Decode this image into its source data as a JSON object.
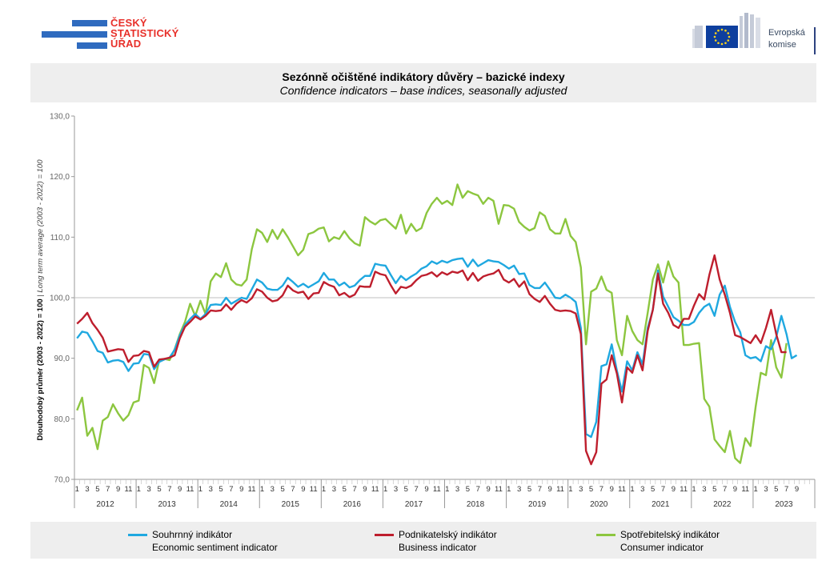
{
  "header": {
    "logo_left_lines": [
      "ČESKÝ",
      "STATISTICKÝ",
      "ÚŘAD"
    ],
    "logo_right_lines": [
      "Evropská",
      "komise"
    ]
  },
  "chart_data": {
    "type": "line",
    "title": "Sezónně očištěné indikátory důvěry – bazické indexy",
    "subtitle": "Confidence indicators – base indices, seasonally adjusted",
    "ylabel": "Dlouhodobý průměr (2003 - 2022) = 100",
    "ylabel_italic": " | Long term average (2003 - 2022) = 100",
    "ylim": [
      70,
      130
    ],
    "yticks": [
      "70,0",
      "80,0",
      "90,0",
      "100,0",
      "110,0",
      "120,0",
      "130,0"
    ],
    "month_tick_labels": [
      "1",
      "3",
      "5",
      "7",
      "9",
      "11"
    ],
    "year_labels": [
      "2012",
      "2013",
      "2014",
      "2015",
      "2016",
      "2017",
      "2018",
      "2019",
      "2020",
      "2021",
      "2022",
      "2023"
    ],
    "x_start": "2012-01",
    "x_end": "2023-07",
    "grid": "horizontal at 100 only",
    "legend_position": "bottom",
    "series": [
      {
        "name": "Souhrnný indikátor",
        "name_en": "Economic sentiment indicator",
        "color": "#1fa8e0",
        "values": [
          93.3,
          94.4,
          94.2,
          92.8,
          91.2,
          90.9,
          89.3,
          89.6,
          89.7,
          89.4,
          87.9,
          89.1,
          89.2,
          90.7,
          90.6,
          88.2,
          89.4,
          89.8,
          90.1,
          91.4,
          93.8,
          95.5,
          96.5,
          97.3,
          96.5,
          97.3,
          98.8,
          98.9,
          98.8,
          100.0,
          99.0,
          99.5,
          100.0,
          99.8,
          101.4,
          103.0,
          102.5,
          101.5,
          101.3,
          101.3,
          102.0,
          103.3,
          102.6,
          101.8,
          102.3,
          101.7,
          102.2,
          102.7,
          104.1,
          103.0,
          103.0,
          102.0,
          102.5,
          101.7,
          102.0,
          102.9,
          103.6,
          103.6,
          105.6,
          105.4,
          105.3,
          103.8,
          102.4,
          103.6,
          102.9,
          103.5,
          104.0,
          104.8,
          105.2,
          106.0,
          105.6,
          106.1,
          105.8,
          106.2,
          106.4,
          106.5,
          105.1,
          106.3,
          105.2,
          105.7,
          106.2,
          106.0,
          105.9,
          105.4,
          104.8,
          105.3,
          103.9,
          104.0,
          102.1,
          101.6,
          101.6,
          102.5,
          101.3,
          100.0,
          99.9,
          100.5,
          100.0,
          99.3,
          95.0,
          77.5,
          77.0,
          79.5,
          88.7,
          89.0,
          92.3,
          88.0,
          84.5,
          89.5,
          88.0,
          91.0,
          89.0,
          95.0,
          98.0,
          104.5,
          100.2,
          98.5,
          96.8,
          96.2,
          95.5,
          95.5,
          96.0,
          97.5,
          98.5,
          99.0,
          97.0,
          100.5,
          102.0,
          98.5,
          96.0,
          94.3,
          90.5,
          90.0,
          90.2,
          89.5,
          92.0,
          91.5,
          93.5,
          97.0,
          94.0,
          90.0,
          90.5
        ]
      },
      {
        "name": "Podnikatelský indikátor",
        "name_en": "Business indicator",
        "color": "#be1e2d",
        "values": [
          95.7,
          96.5,
          97.5,
          95.8,
          94.7,
          93.4,
          91.1,
          91.3,
          91.5,
          91.4,
          89.4,
          90.4,
          90.5,
          91.2,
          91.0,
          88.6,
          89.8,
          89.9,
          90.1,
          90.5,
          93.3,
          95.2,
          96.0,
          96.9,
          96.4,
          97.0,
          97.9,
          97.8,
          97.9,
          98.9,
          98.0,
          99.0,
          99.6,
          99.2,
          99.9,
          101.4,
          101.0,
          100.0,
          99.4,
          99.6,
          100.4,
          102.0,
          101.2,
          100.8,
          101.0,
          99.8,
          100.7,
          100.8,
          102.6,
          102.1,
          101.8,
          100.4,
          100.8,
          100.1,
          100.5,
          101.9,
          101.8,
          101.8,
          104.3,
          103.9,
          103.7,
          102.1,
          100.7,
          101.8,
          101.6,
          102.0,
          102.9,
          103.6,
          103.8,
          104.2,
          103.5,
          104.2,
          103.8,
          104.3,
          104.1,
          104.5,
          102.9,
          104.1,
          102.8,
          103.5,
          103.8,
          104.0,
          104.6,
          103.0,
          102.5,
          103.1,
          101.8,
          102.7,
          100.6,
          99.8,
          99.3,
          100.3,
          99.0,
          98.0,
          97.8,
          97.9,
          97.8,
          97.4,
          94.0,
          74.7,
          72.5,
          74.5,
          85.8,
          86.5,
          90.5,
          87.5,
          82.7,
          88.5,
          87.6,
          90.5,
          88.0,
          94.5,
          98.0,
          104.0,
          99.0,
          97.5,
          95.5,
          95.0,
          96.5,
          96.5,
          98.7,
          100.6,
          99.7,
          103.8,
          107.0,
          103.0,
          100.5,
          97.5,
          93.8,
          93.5,
          93.0,
          92.5,
          93.8,
          92.5,
          95.0,
          98.0,
          94.0,
          91.0,
          91.0
        ]
      },
      {
        "name": "Spotřebitelský indikátor",
        "name_en": "Consumer indicator",
        "color": "#8cc63f",
        "values": [
          81.4,
          83.5,
          77.2,
          78.5,
          75.0,
          79.7,
          80.3,
          82.4,
          80.9,
          79.7,
          80.6,
          82.7,
          83.0,
          88.9,
          88.4,
          85.9,
          89.7,
          89.9,
          89.7,
          91.5,
          94.0,
          96.0,
          99.0,
          97.0,
          99.5,
          97.3,
          102.7,
          104.0,
          103.4,
          105.7,
          103.0,
          102.2,
          102.0,
          103.0,
          108.0,
          111.3,
          110.7,
          109.2,
          111.2,
          109.7,
          111.3,
          110.0,
          108.5,
          107.0,
          107.9,
          110.5,
          110.8,
          111.4,
          111.6,
          109.3,
          110.0,
          109.7,
          111.0,
          109.8,
          109.0,
          108.6,
          113.3,
          112.6,
          112.1,
          112.8,
          113.0,
          112.2,
          111.4,
          113.7,
          110.6,
          112.2,
          111.0,
          111.5,
          114.0,
          115.5,
          116.5,
          115.5,
          116.0,
          115.3,
          118.7,
          116.5,
          117.6,
          117.2,
          116.9,
          115.5,
          116.5,
          116.0,
          112.2,
          115.3,
          115.2,
          114.7,
          112.5,
          111.7,
          111.1,
          111.5,
          114.1,
          113.5,
          111.3,
          110.6,
          110.6,
          113.0,
          110.2,
          109.2,
          105.0,
          92.3,
          101.0,
          101.5,
          103.5,
          101.3,
          100.8,
          93.0,
          90.5,
          97.0,
          94.5,
          93.0,
          92.3,
          97.5,
          103.0,
          105.5,
          102.5,
          106.0,
          103.5,
          102.5,
          92.2,
          92.2,
          92.4,
          92.5,
          83.3,
          82.0,
          76.6,
          75.5,
          74.5,
          78.0,
          73.5,
          72.7,
          76.8,
          75.5,
          82.0,
          87.6,
          87.2,
          93.0,
          88.5,
          86.8,
          92.5
        ]
      }
    ]
  }
}
